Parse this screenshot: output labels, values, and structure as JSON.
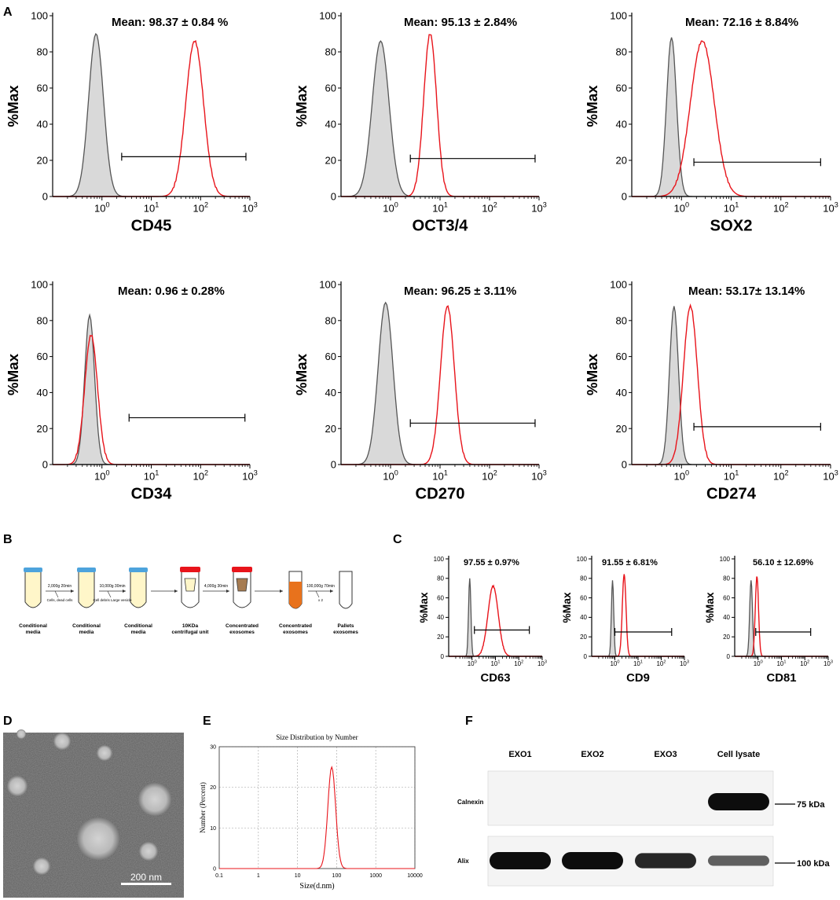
{
  "panel_labels": {
    "A": "A",
    "B": "B",
    "C": "C",
    "D": "D",
    "E": "E",
    "F": "F"
  },
  "colors": {
    "control": "#555555",
    "control_fill": "#d9d9d9",
    "sample": "#e8141b",
    "axis": "#000000"
  },
  "chart_data": [
    {
      "type": "histogram",
      "panel": "A",
      "marker": "CD45",
      "ylabel": "%Max",
      "annotation": "Mean: 98.37 ± 0.84 %",
      "ylim": [
        0,
        100
      ],
      "yticks": [
        "0",
        "20",
        "40",
        "60",
        "80",
        "100"
      ],
      "x_log_range": [
        -1,
        3
      ],
      "control": {
        "peak_log": -0.12,
        "peak_val": 90,
        "width": 0.15
      },
      "sample": {
        "peak_log": 1.88,
        "peak_val": 86,
        "width": 0.18
      },
      "gate": {
        "from_log": 0.4,
        "to_log": 2.92,
        "y": 22
      }
    },
    {
      "type": "histogram",
      "panel": "A",
      "marker": "OCT3/4",
      "ylabel": "%Max",
      "annotation": "Mean: 95.13 ± 2.84%",
      "ylim": [
        0,
        100
      ],
      "yticks": [
        "0",
        "20",
        "40",
        "60",
        "80",
        "100"
      ],
      "x_log_range": [
        -1,
        3
      ],
      "control": {
        "peak_log": -0.2,
        "peak_val": 86,
        "width": 0.17
      },
      "sample": {
        "peak_log": 0.8,
        "peak_val": 90,
        "width": 0.13
      },
      "gate": {
        "from_log": 0.4,
        "to_log": 2.92,
        "y": 21
      }
    },
    {
      "type": "histogram",
      "panel": "A",
      "marker": "SOX2",
      "ylabel": "%Max",
      "annotation": "Mean: 72.16 ± 8.84%",
      "ylim": [
        0,
        100
      ],
      "yticks": [
        "0",
        "20",
        "40",
        "60",
        "80",
        "100"
      ],
      "x_log_range": [
        -1,
        3
      ],
      "control": {
        "peak_log": -0.2,
        "peak_val": 88,
        "width": 0.1
      },
      "sample": {
        "peak_log": 0.42,
        "peak_val": 86,
        "width": 0.24
      },
      "gate": {
        "from_log": 0.25,
        "to_log": 2.8,
        "y": 19
      }
    },
    {
      "type": "histogram",
      "panel": "A",
      "marker": "CD34",
      "ylabel": "%Max",
      "annotation": "Mean: 0.96 ± 0.28%",
      "ylim": [
        0,
        100
      ],
      "yticks": [
        "0",
        "20",
        "40",
        "60",
        "80",
        "100"
      ],
      "x_log_range": [
        -1,
        3
      ],
      "control": {
        "peak_log": -0.25,
        "peak_val": 83,
        "width": 0.1
      },
      "sample": {
        "peak_log": -0.22,
        "peak_val": 72,
        "width": 0.13
      },
      "gate": {
        "from_log": 0.55,
        "to_log": 2.9,
        "y": 26
      }
    },
    {
      "type": "histogram",
      "panel": "A",
      "marker": "CD270",
      "ylabel": "%Max",
      "annotation": "Mean: 96.25 ± 3.11%",
      "ylim": [
        0,
        100
      ],
      "yticks": [
        "0",
        "20",
        "40",
        "60",
        "80",
        "100"
      ],
      "x_log_range": [
        -1,
        3
      ],
      "control": {
        "peak_log": -0.1,
        "peak_val": 90,
        "width": 0.15
      },
      "sample": {
        "peak_log": 1.15,
        "peak_val": 88,
        "width": 0.14
      },
      "gate": {
        "from_log": 0.4,
        "to_log": 2.92,
        "y": 23
      }
    },
    {
      "type": "histogram",
      "panel": "A",
      "marker": "CD274",
      "ylabel": "%Max",
      "annotation": "Mean: 53.17± 13.14%",
      "ylim": [
        0,
        100
      ],
      "yticks": [
        "0",
        "20",
        "40",
        "60",
        "80",
        "100"
      ],
      "x_log_range": [
        -1,
        3
      ],
      "control": {
        "peak_log": -0.15,
        "peak_val": 88,
        "width": 0.09
      },
      "sample": {
        "peak_log": 0.18,
        "peak_val": 88,
        "width": 0.14
      },
      "gate": {
        "from_log": 0.25,
        "to_log": 2.8,
        "y": 21
      }
    },
    {
      "type": "histogram",
      "panel": "C",
      "marker": "CD63",
      "ylabel": "%Max",
      "annotation": "97.55 ± 0.97%",
      "ylim": [
        0,
        100
      ],
      "yticks": [
        "0",
        "20",
        "40",
        "60",
        "80",
        "100"
      ],
      "x_log_range": [
        -1,
        3
      ],
      "control": {
        "peak_log": -0.1,
        "peak_val": 80,
        "width": 0.05
      },
      "sample": {
        "peak_log": 0.9,
        "peak_val": 72,
        "width": 0.22
      },
      "gate": {
        "from_log": 0.1,
        "to_log": 2.45,
        "y": 27
      }
    },
    {
      "type": "histogram",
      "panel": "C",
      "marker": "CD9",
      "ylabel": "%Max",
      "annotation": "91.55 ± 6.81%",
      "ylim": [
        0,
        100
      ],
      "yticks": [
        "0",
        "20",
        "40",
        "60",
        "80",
        "100"
      ],
      "x_log_range": [
        -1,
        3
      ],
      "control": {
        "peak_log": -0.1,
        "peak_val": 78,
        "width": 0.05
      },
      "sample": {
        "peak_log": 0.4,
        "peak_val": 84,
        "width": 0.08
      },
      "gate": {
        "from_log": 0.0,
        "to_log": 2.45,
        "y": 25
      }
    },
    {
      "type": "histogram",
      "panel": "C",
      "marker": "CD81",
      "ylabel": "%Max",
      "annotation": "56.10 ± 12.69%",
      "ylim": [
        0,
        100
      ],
      "yticks": [
        "0",
        "20",
        "40",
        "60",
        "80",
        "100"
      ],
      "x_log_range": [
        -1,
        3
      ],
      "control": {
        "peak_log": -0.3,
        "peak_val": 78,
        "width": 0.06
      },
      "sample": {
        "peak_log": -0.05,
        "peak_val": 82,
        "width": 0.07
      },
      "gate": {
        "from_log": -0.1,
        "to_log": 2.25,
        "y": 25
      }
    },
    {
      "type": "line",
      "panel": "E",
      "title": "Size Distribution by Number",
      "xlabel": "Size(d.nm)",
      "ylabel": "Number (Percent)",
      "x_ticks": [
        "0.1",
        "1",
        "10",
        "100",
        "1000",
        "10000"
      ],
      "y_ticks": [
        "0",
        "10",
        "20",
        "30"
      ],
      "ylim": [
        0,
        30
      ],
      "peak_size_nm": 75,
      "peak_percent": 25
    }
  ],
  "protocol": {
    "tubes": [
      {
        "label1": "Conditional",
        "label2": "media"
      },
      {
        "label1": "Conditional",
        "label2": "media"
      },
      {
        "label1": "Conditional",
        "label2": "media"
      },
      {
        "label1": "10KDa",
        "label2": "centrifugal unit"
      },
      {
        "label1": "Concentrated",
        "label2": "exosomes"
      },
      {
        "label1": "Concentrated",
        "label2": "exosomes"
      },
      {
        "label1": "Pallets",
        "label2": "exosomes"
      }
    ],
    "steps": [
      {
        "top": "2,000g 20min",
        "bottom": "Cells, dead cells"
      },
      {
        "top": "10,000g 30min",
        "bottom": "Cell debris Large vesicle"
      },
      {
        "top": "",
        "bottom": ""
      },
      {
        "top": "4,000g 30min",
        "bottom": ""
      },
      {
        "top": "",
        "bottom": ""
      },
      {
        "top": "100,000g 70min",
        "bottom": "x 2"
      }
    ]
  },
  "tem": {
    "scale_label": "200 nm"
  },
  "western": {
    "lanes": [
      "EXO1",
      "EXO2",
      "EXO3",
      "Cell lysate"
    ],
    "rows": [
      {
        "name": "Calnexin",
        "marker": "75 kDa",
        "intensities": [
          0,
          0,
          0,
          1
        ]
      },
      {
        "name": "Alix",
        "marker": "100 kDa",
        "intensities": [
          1,
          1,
          0.8,
          0.35
        ]
      }
    ]
  }
}
